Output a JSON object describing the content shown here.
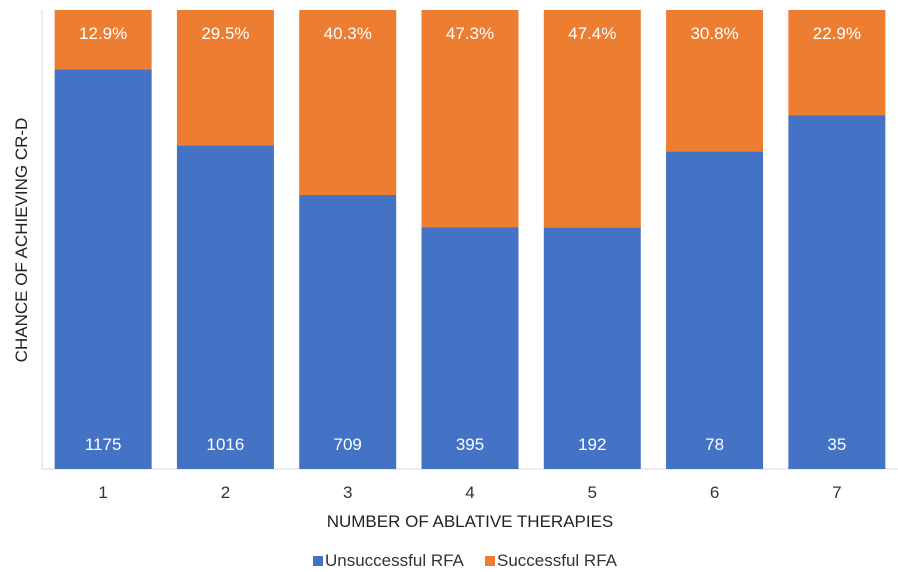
{
  "chart_data": {
    "type": "bar",
    "stacked": true,
    "normalized": true,
    "categories": [
      "1",
      "2",
      "3",
      "4",
      "5",
      "6",
      "7"
    ],
    "xlabel": "NUMBER OF ABLATIVE THERAPIES",
    "ylabel": "CHANCE OF ACHIEVING CR-D",
    "ylim": [
      0,
      100
    ],
    "grid": false,
    "legend_position": "bottom",
    "series": [
      {
        "name": "Unsuccessful RFA",
        "color": "#4472C4",
        "values": [
          87.1,
          70.5,
          59.7,
          52.7,
          52.6,
          69.2,
          77.1
        ],
        "labels": [
          "1175",
          "1016",
          "709",
          "395",
          "192",
          "78",
          "35"
        ]
      },
      {
        "name": "Successful RFA",
        "color": "#ED7D31",
        "values": [
          12.9,
          29.5,
          40.3,
          47.3,
          47.4,
          30.8,
          22.9
        ],
        "labels": [
          "12.9%",
          "29.5%",
          "40.3%",
          "47.3%",
          "47.4%",
          "30.8%",
          "22.9%"
        ]
      }
    ]
  }
}
